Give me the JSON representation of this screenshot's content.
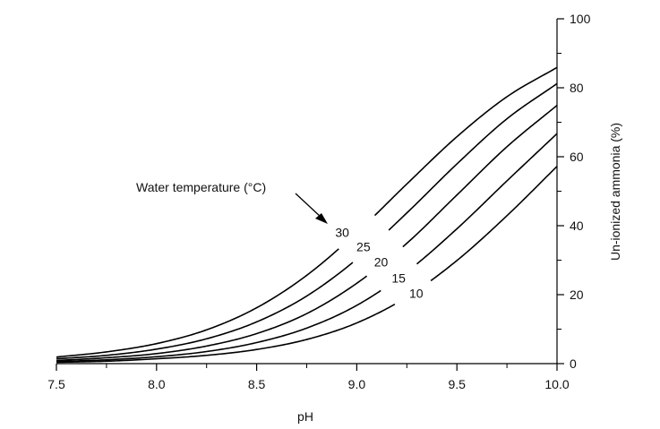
{
  "chart_data": {
    "type": "line",
    "title": "",
    "xlabel": "pH",
    "ylabel": "Un-ionized ammonia (%)",
    "xlim": [
      7.5,
      10.0
    ],
    "ylim": [
      0,
      100
    ],
    "x_ticks": [
      "7.5",
      "8.0",
      "8.5",
      "9.0",
      "9.5",
      "10.0"
    ],
    "y_ticks": [
      "0",
      "20",
      "40",
      "60",
      "80",
      "100"
    ],
    "grid": false,
    "annotation": "Water temperature (°C)",
    "x": [
      7.5,
      7.75,
      8.0,
      8.25,
      8.5,
      8.75,
      9.0,
      9.25,
      9.5,
      9.75,
      10.0
    ],
    "series": [
      {
        "name": "30",
        "values": [
          1.9,
          3.4,
          5.8,
          9.8,
          16.2,
          25.6,
          38.0,
          52.1,
          65.8,
          77.4,
          85.9
        ]
      },
      {
        "name": "25",
        "values": [
          1.4,
          2.4,
          4.2,
          7.2,
          12.1,
          19.6,
          30.3,
          43.7,
          57.9,
          71.0,
          81.2
        ]
      },
      {
        "name": "20",
        "values": [
          0.9,
          1.7,
          2.9,
          5.1,
          8.7,
          14.5,
          23.3,
          34.9,
          48.9,
          62.9,
          74.9
        ]
      },
      {
        "name": "15",
        "values": [
          0.6,
          1.1,
          2.0,
          3.5,
          6.1,
          10.3,
          16.9,
          26.6,
          39.1,
          53.0,
          66.7
        ]
      },
      {
        "name": "10",
        "values": [
          0.4,
          0.7,
          1.4,
          2.4,
          4.1,
          7.0,
          11.8,
          19.3,
          29.9,
          42.9,
          57.2
        ]
      }
    ]
  }
}
